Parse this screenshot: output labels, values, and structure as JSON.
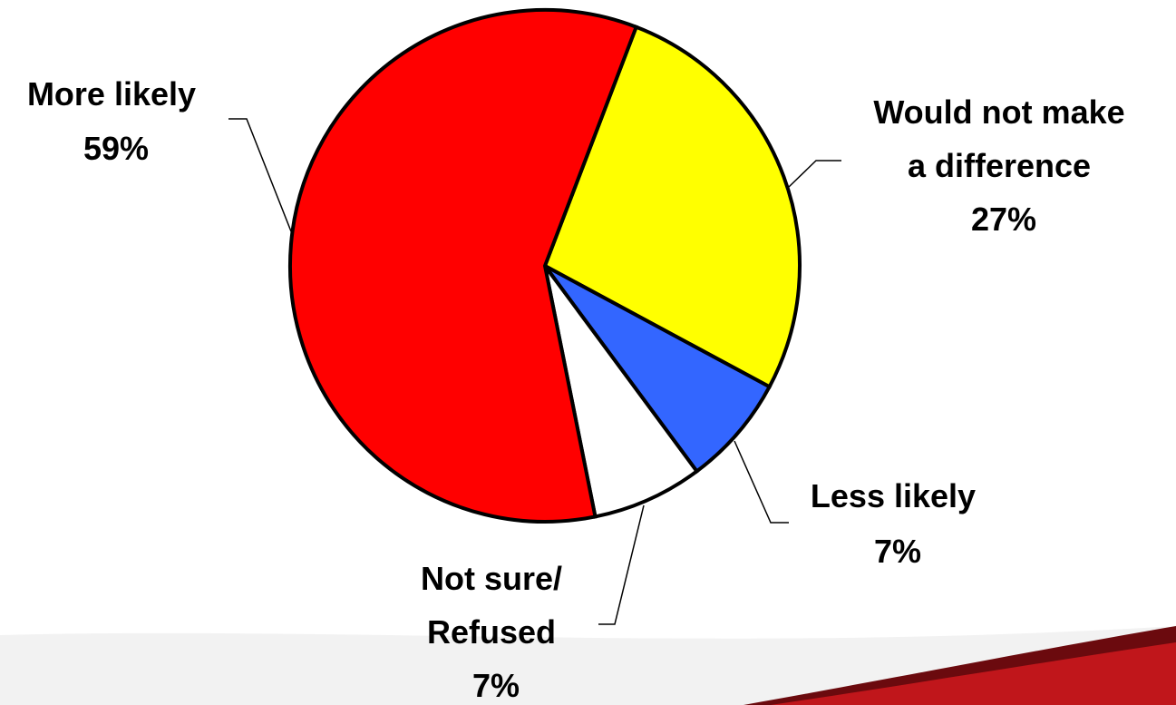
{
  "chart_data": {
    "type": "pie",
    "title": "",
    "slices": [
      {
        "name": "Would not make a difference",
        "label_lines": [
          "Would not make",
          "a difference"
        ],
        "value_label": "27%",
        "value": 27,
        "color": "#ffff00"
      },
      {
        "name": "Less likely",
        "label_lines": [
          "Less likely"
        ],
        "value_label": "7%",
        "value": 7,
        "color": "#3366ff"
      },
      {
        "name": "Not sure/ Refused",
        "label_lines": [
          "Not sure/",
          "Refused"
        ],
        "value_label": "7%",
        "value": 7,
        "color": "#ffffff"
      },
      {
        "name": "More likely",
        "label_lines": [
          "More likely"
        ],
        "value_label": "59%",
        "value": 59,
        "color": "#ff0000"
      }
    ]
  },
  "decoration": {
    "swoosh_color": "#c0161b",
    "swoosh_dark": "#6b0a0e"
  }
}
